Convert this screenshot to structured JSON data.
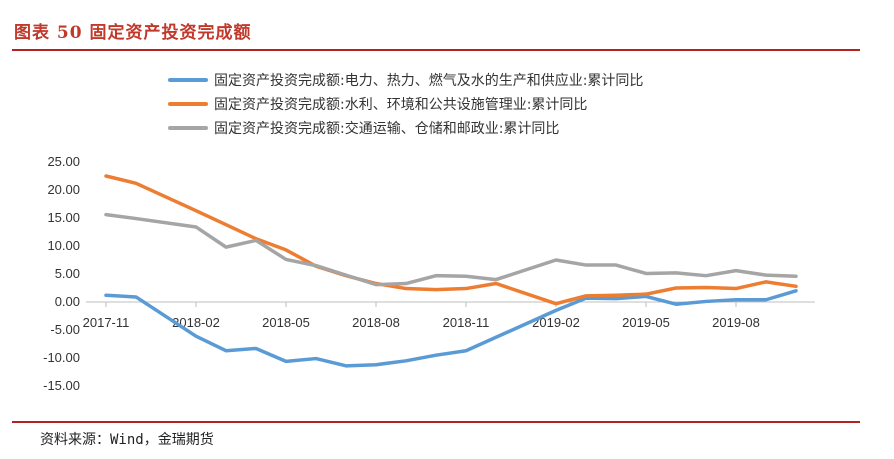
{
  "header": {
    "title": "图表 50   固定资产投资完成额"
  },
  "footer": {
    "source": "资料来源：Wind，金瑞期货"
  },
  "chart_data": {
    "type": "line",
    "ylim": [
      -15,
      25
    ],
    "yticks": [
      "25.00",
      "20.00",
      "15.00",
      "10.00",
      "5.00",
      "0.00",
      "-5.00",
      "-10.00",
      "-15.00"
    ],
    "ytick_values": [
      25,
      20,
      15,
      10,
      5,
      0,
      -5,
      -10,
      -15
    ],
    "xtick_labels": [
      "2017-11",
      "2018-02",
      "2018-05",
      "2018-08",
      "2018-11",
      "2019-02",
      "2019-05",
      "2019-08"
    ],
    "xtick_indices": [
      0,
      3,
      6,
      9,
      12,
      15,
      18,
      21
    ],
    "categories": [
      "2017-11",
      "2017-12",
      "2018-02",
      "2018-03",
      "2018-04",
      "2018-05",
      "2018-06",
      "2018-07",
      "2018-08",
      "2018-09",
      "2018-10",
      "2018-11",
      "2018-12",
      "2019-02",
      "2019-03",
      "2019-04",
      "2019-05",
      "2019-06",
      "2019-07",
      "2019-08",
      "2019-09",
      "2019-10"
    ],
    "x_index": [
      0,
      1,
      3,
      4,
      5,
      6,
      7,
      8,
      9,
      10,
      11,
      12,
      13,
      15,
      16,
      17,
      18,
      19,
      20,
      21,
      22,
      23
    ],
    "series": [
      {
        "name": "固定资产投资完成额:电力、热力、燃气及水的生产和供应业:累计同比",
        "color": "#5b9bd5",
        "values": [
          1.2,
          0.9,
          -6.1,
          -8.7,
          -8.3,
          -10.6,
          -10.1,
          -11.4,
          -11.2,
          -10.5,
          -9.5,
          -8.7,
          -6.3,
          -1.5,
          0.7,
          0.6,
          1.0,
          -0.4,
          0.1,
          0.4,
          0.4,
          2.0
        ]
      },
      {
        "name": "固定资产投资完成额:水利、环境和公共设施管理业:累计同比",
        "color": "#ed7d31",
        "values": [
          22.5,
          21.2,
          16.3,
          13.8,
          11.3,
          9.3,
          6.4,
          4.7,
          3.3,
          2.4,
          2.2,
          2.4,
          3.3,
          -0.3,
          1.1,
          1.2,
          1.4,
          2.5,
          2.6,
          2.4,
          3.6,
          2.8
        ]
      },
      {
        "name": "固定资产投资完成额:交通运输、仓储和邮政业:累计同比",
        "color": "#a5a5a5",
        "values": [
          15.6,
          14.9,
          13.4,
          9.8,
          11.0,
          7.6,
          6.5,
          4.8,
          3.1,
          3.3,
          4.7,
          4.6,
          4.0,
          7.5,
          6.6,
          6.6,
          5.1,
          5.2,
          4.7,
          5.6,
          4.8,
          4.6
        ]
      }
    ]
  }
}
